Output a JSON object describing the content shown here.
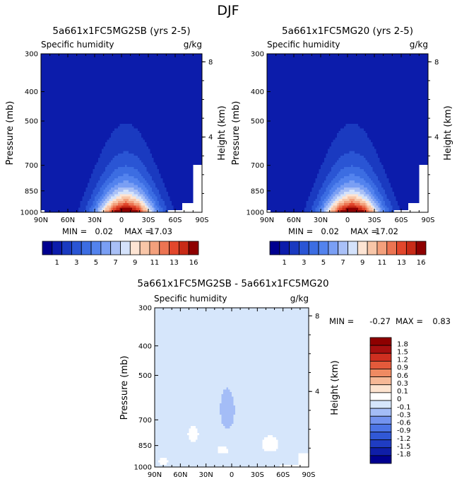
{
  "figure_title": "DJF",
  "chart_data": [
    {
      "type": "heatmap",
      "id": "panel-left",
      "title": "5a661x1FC5MG2SB (yrs 2-5)",
      "subtitle_left": "Specific humidity",
      "subtitle_right": "g/kg",
      "ylabel": "Pressure (mb)",
      "ylabel_right": "Height (km)",
      "x_ticks": [
        "90N",
        "60N",
        "30N",
        "0",
        "30S",
        "60S",
        "90S"
      ],
      "x_range": [
        90,
        -90
      ],
      "y_ticks": [
        300,
        400,
        500,
        700,
        850,
        1000
      ],
      "y_range": [
        300,
        1000
      ],
      "height_ticks": [
        8,
        4
      ],
      "min_label": "MIN =",
      "min_value": "0.02",
      "max_label": "MAX =",
      "max_value": "17.03",
      "colorbar_labels": [
        "1",
        "3",
        "5",
        "7",
        "9",
        "11",
        "13",
        "16"
      ],
      "contour_levels": [
        0,
        1,
        2,
        3,
        4,
        5,
        6,
        7,
        8,
        9,
        10,
        11,
        12,
        13,
        14,
        16
      ],
      "field": {
        "kind": "humidity",
        "surface_value": 17.0,
        "peak_lat": -5,
        "width_deg": 32,
        "scale_height_mb": 170,
        "background": 0.05
      }
    },
    {
      "type": "heatmap",
      "id": "panel-right",
      "title": "5a661x1FC5MG20 (yrs 2-5)",
      "subtitle_left": "Specific humidity",
      "subtitle_right": "g/kg",
      "ylabel": "Pressure (mb)",
      "ylabel_right": "Height (km)",
      "x_ticks": [
        "90N",
        "60N",
        "30N",
        "0",
        "30S",
        "60S",
        "90S"
      ],
      "x_range": [
        90,
        -90
      ],
      "y_ticks": [
        300,
        400,
        500,
        700,
        850,
        1000
      ],
      "y_range": [
        300,
        1000
      ],
      "height_ticks": [
        8,
        4
      ],
      "min_label": "MIN =",
      "min_value": "0.02",
      "max_label": "MAX =",
      "max_value": "17.02",
      "colorbar_labels": [
        "1",
        "3",
        "5",
        "7",
        "9",
        "11",
        "13",
        "16"
      ],
      "contour_levels": [
        0,
        1,
        2,
        3,
        4,
        5,
        6,
        7,
        8,
        9,
        10,
        11,
        12,
        13,
        14,
        16
      ],
      "field": {
        "kind": "humidity",
        "surface_value": 17.0,
        "peak_lat": -5,
        "width_deg": 32,
        "scale_height_mb": 170,
        "background": 0.05
      }
    },
    {
      "type": "heatmap",
      "id": "panel-diff",
      "title": "5a661x1FC5MG2SB - 5a661x1FC5MG20",
      "subtitle_left": "Specific humidity",
      "subtitle_right": "g/kg",
      "ylabel": "Pressure (mb)",
      "ylabel_right": "Height (km)",
      "x_ticks": [
        "90N",
        "60N",
        "30N",
        "0",
        "30S",
        "60S",
        "90S"
      ],
      "x_range": [
        90,
        -90
      ],
      "y_ticks": [
        300,
        400,
        500,
        700,
        850,
        1000
      ],
      "y_range": [
        300,
        1000
      ],
      "height_ticks": [
        8,
        4
      ],
      "min_label": "MIN =",
      "min_value": "-0.27",
      "max_label": "MAX =",
      "max_value": "0.83",
      "colorbar_labels": [
        "1.8",
        "1.5",
        "1.2",
        "0.9",
        "0.6",
        "0.3",
        "0.1",
        "0",
        "-0.1",
        "-0.3",
        "-0.6",
        "-0.9",
        "-1.2",
        "-1.5",
        "-1.8"
      ],
      "contour_levels": [
        -1.8,
        -1.5,
        -1.2,
        -0.9,
        -0.6,
        -0.3,
        -0.1,
        0.1,
        0.3,
        0.6,
        0.9,
        1.2,
        1.5,
        1.8
      ],
      "field": {
        "kind": "difference",
        "base": 0.05,
        "blobs": [
          {
            "lat": 5,
            "p": 650,
            "dlat": 12,
            "dp": 140,
            "amp": -0.24
          },
          {
            "lat": 35,
            "p": 450,
            "dlat": 18,
            "dp": 110,
            "amp": -0.12
          },
          {
            "lat": -45,
            "p": 840,
            "dlat": 9,
            "dp": 45,
            "amp": 0.17
          },
          {
            "lat": 45,
            "p": 780,
            "dlat": 6,
            "dp": 45,
            "amp": 0.14
          },
          {
            "lat": 10,
            "p": 880,
            "dlat": 7,
            "dp": 30,
            "amp": 0.14
          },
          {
            "lat": -10,
            "p": 400,
            "dlat": 20,
            "dp": 60,
            "amp": -0.13
          },
          {
            "lat": -20,
            "p": 950,
            "dlat": 10,
            "dp": 60,
            "amp": -0.1
          },
          {
            "lat": 80,
            "p": 960,
            "dlat": 8,
            "dp": 40,
            "amp": 0.08
          }
        ]
      }
    }
  ],
  "colors": {
    "humidity": [
      "#00008f",
      "#0c1cab",
      "#1a3ac0",
      "#2a55d4",
      "#3c6de2",
      "#5383ee",
      "#7a9ff4",
      "#a9c0f7",
      "#d4e2fb",
      "#fde4d3",
      "#f8c6a8",
      "#f3a07c",
      "#ec7452",
      "#e2472c",
      "#c82b17",
      "#8e0000"
    ],
    "difference": [
      "#00008f",
      "#0f1ea8",
      "#1f3cc2",
      "#3158d6",
      "#4c74e6",
      "#7393ef",
      "#a4bdf7",
      "#d6e6fb",
      "#ffffff",
      "#fde3cf",
      "#f6b896",
      "#ef8a62",
      "#e45a3b",
      "#cf2f20",
      "#a60f0f",
      "#8e0000"
    ]
  }
}
